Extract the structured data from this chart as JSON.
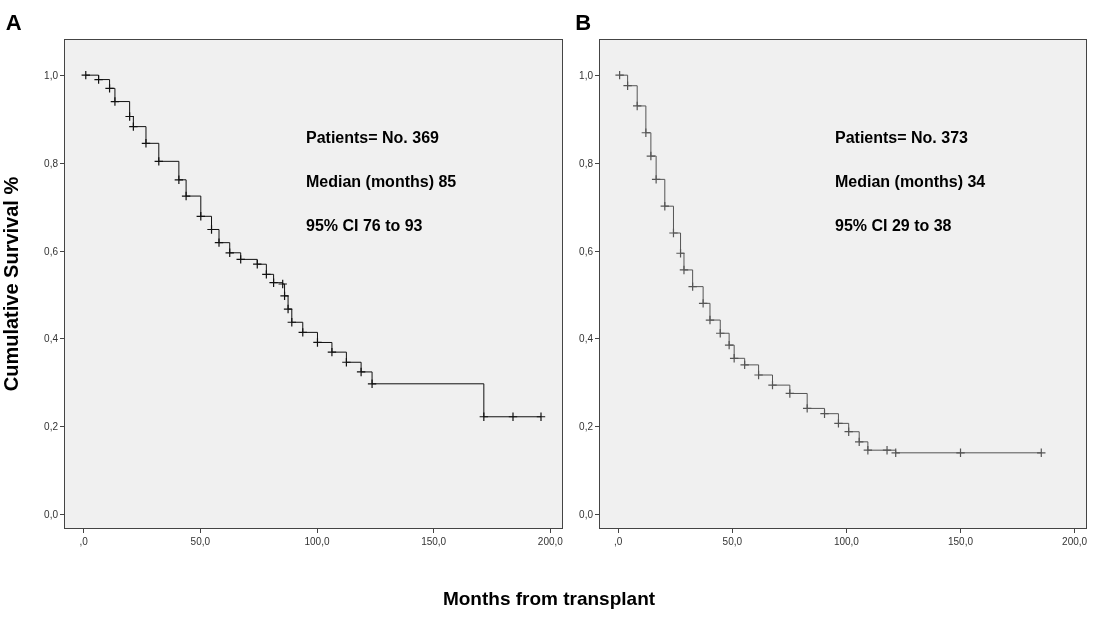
{
  "chart_data": [
    {
      "type": "step",
      "title": "A",
      "xlabel": "Months from transplant",
      "ylabel": "Cumulative Survival %",
      "xlim": [
        -8,
        205
      ],
      "ylim": [
        -0.03,
        1.08
      ],
      "xticks": [
        {
          "value": 0,
          "label": ",0"
        },
        {
          "value": 50,
          "label": "50,0"
        },
        {
          "value": 100,
          "label": "100,0"
        },
        {
          "value": 150,
          "label": "150,0"
        },
        {
          "value": 200,
          "label": "200,0"
        }
      ],
      "yticks": [
        {
          "value": 0,
          "label": "0,0"
        },
        {
          "value": 0.2,
          "label": "0,2"
        },
        {
          "value": 0.4,
          "label": "0,4"
        },
        {
          "value": 0.6,
          "label": "0,6"
        },
        {
          "value": 0.8,
          "label": "0,8"
        },
        {
          "value": 1,
          "label": "1,0"
        }
      ],
      "series": [
        {
          "color": "#111111",
          "x": [
            0.9,
            6.4,
            11.1,
            13.4,
            19.7,
            21.3,
            26.7,
            32.2,
            40.8,
            43.9,
            50.2,
            54.8,
            58.0,
            62.6,
            67.3,
            74.4,
            78.3,
            81.4,
            85.3,
            86.1,
            87.6,
            89.2,
            93.9,
            100.2,
            106.4,
            112.6,
            118.9,
            123.6,
            171.5,
            184,
            196
          ],
          "values": [
            1.0,
            0.99,
            0.97,
            0.94,
            0.906,
            0.883,
            0.845,
            0.804,
            0.762,
            0.725,
            0.679,
            0.649,
            0.619,
            0.596,
            0.581,
            0.57,
            0.547,
            0.528,
            0.525,
            0.498,
            0.468,
            0.438,
            0.415,
            0.392,
            0.37,
            0.347,
            0.325,
            0.298,
            0.223,
            0.223,
            0.223
          ]
        }
      ],
      "annotations": [
        "Patients= No. 369",
        "Median (months) 85",
        "95% CI 76 to 93"
      ],
      "marker": "cross",
      "grid": false
    },
    {
      "type": "step",
      "title": "B",
      "xlim": [
        -8,
        205
      ],
      "ylim": [
        -0.03,
        1.08
      ],
      "xticks": [
        {
          "value": 0,
          "label": ",0"
        },
        {
          "value": 50,
          "label": "50,0"
        },
        {
          "value": 100,
          "label": "100,0"
        },
        {
          "value": 150,
          "label": "150,0"
        },
        {
          "value": 200,
          "label": "200,0"
        }
      ],
      "yticks": [
        {
          "value": 0,
          "label": "0,0"
        },
        {
          "value": 0.2,
          "label": "0,2"
        },
        {
          "value": 0.4,
          "label": "0,4"
        },
        {
          "value": 0.6,
          "label": "0,6"
        },
        {
          "value": 0.8,
          "label": "0,8"
        },
        {
          "value": 1,
          "label": "1,0"
        }
      ],
      "series": [
        {
          "color": "#555555",
          "x": [
            0.6,
            4.1,
            8.3,
            12.1,
            14.3,
            16.6,
            20.4,
            24.2,
            27.3,
            28.8,
            32.6,
            37.2,
            40.2,
            44.7,
            48.6,
            50.8,
            55.4,
            61.5,
            67.6,
            75.2,
            82.8,
            90.4,
            96.5,
            101.0,
            105.6,
            109.4,
            117.8,
            121.6,
            150,
            185.4
          ],
          "values": [
            1.0,
            0.976,
            0.93,
            0.869,
            0.816,
            0.763,
            0.702,
            0.641,
            0.595,
            0.557,
            0.519,
            0.481,
            0.443,
            0.413,
            0.386,
            0.356,
            0.341,
            0.318,
            0.295,
            0.276,
            0.242,
            0.23,
            0.208,
            0.189,
            0.166,
            0.147,
            0.147,
            0.141,
            0.141,
            0.141
          ]
        }
      ],
      "annotations": [
        "Patients= No. 373",
        "Median (months) 34",
        "95% CI 29 to 38"
      ],
      "marker": "cross",
      "grid": false
    }
  ]
}
